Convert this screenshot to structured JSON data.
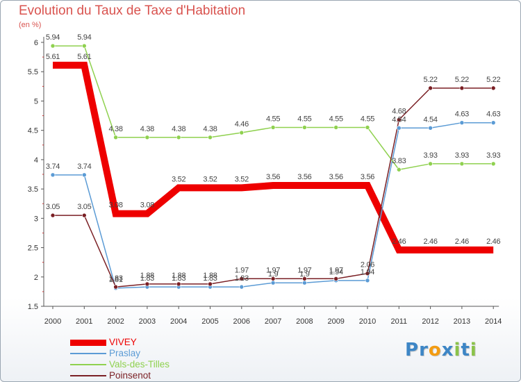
{
  "chart_data": {
    "type": "line",
    "title": "Evolution du Taux de Taxe d'Habitation",
    "subtitle": "(en %)",
    "xlabel": "",
    "ylabel": "",
    "x": [
      "2000",
      "2001",
      "2002",
      "2003",
      "2004",
      "2005",
      "2006",
      "2007",
      "2008",
      "2009",
      "2010",
      "2011",
      "2012",
      "2013",
      "2014"
    ],
    "ylim": [
      1.5,
      6
    ],
    "yticks": [
      1.5,
      2,
      2.5,
      3,
      3.5,
      4,
      4.5,
      5,
      5.5,
      6
    ],
    "ytick_labels": [
      "1.5",
      "2",
      "2.5",
      "3",
      "3.5",
      "4",
      "4.5",
      "5",
      "5.5",
      "6"
    ],
    "grid": false,
    "legend_position": "bottom-left",
    "series": [
      {
        "name": "VIVEY",
        "color": "#ee0000",
        "width": 10,
        "marker": false,
        "values": [
          5.61,
          5.61,
          3.08,
          3.08,
          3.52,
          3.52,
          3.52,
          3.56,
          3.56,
          3.56,
          3.56,
          2.46,
          2.46,
          2.46,
          2.46
        ],
        "labels": [
          "5.61",
          "5.61",
          "3.08",
          "3.08",
          "3.52",
          "3.52",
          "3.52",
          "3.56",
          "3.56",
          "3.56",
          "3.56",
          "2.46",
          "2.46",
          "2.46",
          "2.46"
        ]
      },
      {
        "name": "Praslay",
        "color": "#5b9bd5",
        "width": 1.5,
        "marker": true,
        "values": [
          3.74,
          3.74,
          1.81,
          1.83,
          1.83,
          1.83,
          1.83,
          1.9,
          1.9,
          1.94,
          1.94,
          4.54,
          4.54,
          4.63,
          4.63
        ],
        "labels": [
          "3.74",
          "3.74",
          "1.81",
          "1.83",
          "1.83",
          "1.83",
          "1.83",
          "1.9",
          "1.9",
          "1.94",
          "1.94",
          "4.54",
          "4.54",
          "4.63",
          "4.63"
        ]
      },
      {
        "name": "Vals-des-Tilles",
        "color": "#8fd14f",
        "width": 1.5,
        "marker": true,
        "values": [
          5.94,
          5.94,
          4.38,
          4.38,
          4.38,
          4.38,
          4.46,
          4.55,
          4.55,
          4.55,
          4.55,
          3.83,
          3.93,
          3.93,
          3.93
        ],
        "labels": [
          "5.94",
          "5.94",
          "4.38",
          "4.38",
          "4.38",
          "4.38",
          "4.46",
          "4.55",
          "4.55",
          "4.55",
          "4.55",
          "3.83",
          "3.93",
          "3.93",
          "3.93"
        ]
      },
      {
        "name": "Poinsenot",
        "color": "#7a1f24",
        "width": 1.5,
        "marker": true,
        "values": [
          3.05,
          3.05,
          1.83,
          1.88,
          1.88,
          1.88,
          1.97,
          1.97,
          1.97,
          1.97,
          2.06,
          4.68,
          5.22,
          5.22,
          5.22
        ],
        "labels": [
          "3.05",
          "3.05",
          "1.83",
          "1.88",
          "1.88",
          "1.88",
          "1.97",
          "1.97",
          "1.97",
          "1.97",
          "2.06",
          "4.68",
          "5.22",
          "5.22",
          "5.22"
        ]
      }
    ]
  },
  "logo": {
    "letters": [
      "P",
      "r",
      "o",
      "x",
      "i",
      "t",
      "i"
    ],
    "colors": [
      "#3d86c6",
      "#3d86c6",
      "#f39c12",
      "#3d86c6",
      "#8bc34a",
      "#3d86c6",
      "#8bc34a"
    ]
  }
}
